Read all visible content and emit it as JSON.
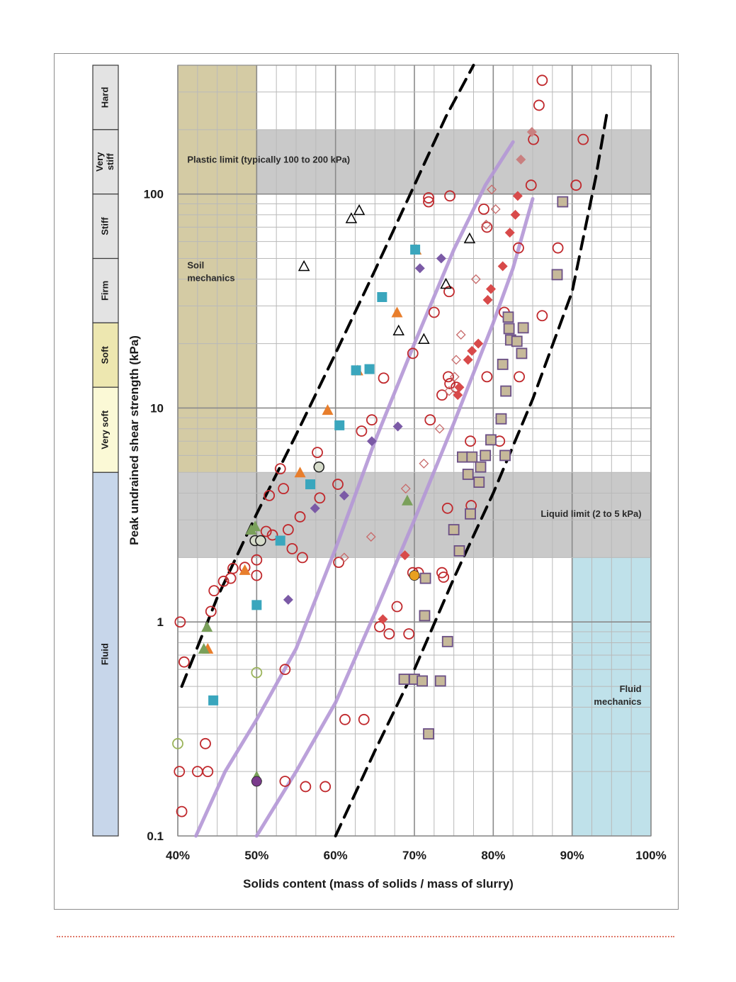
{
  "chart_data": {
    "type": "scatter",
    "xlabel": "Solids content (mass of solids / mass of slurry)",
    "ylabel": "Peak undrained shear strength (kPa)",
    "x_scale": "linear",
    "y_scale": "log",
    "xlim": [
      40,
      100
    ],
    "ylim": [
      0.1,
      400
    ],
    "x_ticks": [
      {
        "value": 40,
        "label": "40%"
      },
      {
        "value": 50,
        "label": "50%"
      },
      {
        "value": 60,
        "label": "60%"
      },
      {
        "value": 70,
        "label": "70%"
      },
      {
        "value": 80,
        "label": "80%"
      },
      {
        "value": 90,
        "label": "90%"
      },
      {
        "value": 100,
        "label": "100%"
      }
    ],
    "y_ticks": [
      {
        "value": 0.1,
        "label": "0.1"
      },
      {
        "value": 1,
        "label": "1"
      },
      {
        "value": 10,
        "label": "10"
      },
      {
        "value": 100,
        "label": "100"
      }
    ],
    "grid": true,
    "consistency_scale": [
      {
        "label": "Hard",
        "from": 200,
        "to": 400,
        "color": "#e3e3e3"
      },
      {
        "label": "Very stiff",
        "from": 100,
        "to": 200,
        "color": "#e3e3e3"
      },
      {
        "label": "Stiff",
        "from": 50,
        "to": 100,
        "color": "#e3e3e3"
      },
      {
        "label": "Firm",
        "from": 25,
        "to": 50,
        "color": "#e3e3e3"
      },
      {
        "label": "Soft",
        "from": 12.5,
        "to": 25,
        "color": "#ede7b0"
      },
      {
        "label": "Very soft",
        "from": 5,
        "to": 12.5,
        "color": "#fbf9d6"
      },
      {
        "label": "Fluid",
        "from": 0.1,
        "to": 5,
        "color": "#c7d6ea"
      }
    ],
    "regions": [
      {
        "label": "Plastic limit (typically 100 to 200 kPa)",
        "x": [
          40,
          100
        ],
        "y": [
          100,
          200
        ],
        "color": "#c9c9c9"
      },
      {
        "label": "Liquid limit (2 to 5 kPa)",
        "x": [
          40,
          100
        ],
        "y": [
          2,
          5
        ],
        "color": "#c9c9c9"
      },
      {
        "label": "Soil mechanics",
        "x": [
          40,
          50
        ],
        "y": [
          5,
          400
        ],
        "color": "#d4cba4"
      },
      {
        "label": "Fluid mechanics",
        "x": [
          90,
          100
        ],
        "y": [
          0.1,
          2
        ],
        "color": "#bfe1ea"
      }
    ],
    "lines": [
      {
        "style": "dashed",
        "color": "#000000",
        "points": [
          [
            40.5,
            0.5
          ],
          [
            45,
            1.3
          ],
          [
            50,
            3.2
          ],
          [
            55,
            7.5
          ],
          [
            60,
            18
          ],
          [
            65,
            44
          ],
          [
            70,
            110
          ],
          [
            74,
            230
          ],
          [
            77.5,
            400
          ]
        ]
      },
      {
        "style": "dashed",
        "color": "#000000",
        "points": [
          [
            60,
            0.1
          ],
          [
            65,
            0.25
          ],
          [
            70,
            0.6
          ],
          [
            75,
            1.6
          ],
          [
            80,
            4
          ],
          [
            85,
            11
          ],
          [
            90,
            35
          ],
          [
            93,
            120
          ],
          [
            94.5,
            250
          ]
        ]
      },
      {
        "style": "solid",
        "color": "#b497d6",
        "points": [
          [
            42.3,
            0.1
          ],
          [
            46,
            0.2
          ],
          [
            50,
            0.35
          ],
          [
            55,
            0.75
          ],
          [
            60,
            2.2
          ],
          [
            65,
            7
          ],
          [
            70,
            20
          ],
          [
            75,
            55
          ],
          [
            79,
            110
          ],
          [
            82.5,
            175
          ]
        ]
      },
      {
        "style": "solid",
        "color": "#b497d6",
        "points": [
          [
            50,
            0.1
          ],
          [
            55,
            0.2
          ],
          [
            60,
            0.42
          ],
          [
            65,
            1.1
          ],
          [
            70,
            3
          ],
          [
            75,
            8.5
          ],
          [
            80,
            25
          ],
          [
            82.5,
            45
          ],
          [
            85,
            95
          ]
        ]
      }
    ],
    "series": [
      {
        "marker": "circle-open",
        "color": "#c0282c",
        "points": [
          [
            40.3,
            1.0
          ],
          [
            40.8,
            0.65
          ],
          [
            40.2,
            0.2
          ],
          [
            40.5,
            0.13
          ],
          [
            42.5,
            0.2
          ],
          [
            43.8,
            0.2
          ],
          [
            43.5,
            0.27
          ],
          [
            44.2,
            1.12
          ],
          [
            44.6,
            1.4
          ],
          [
            45.8,
            1.55
          ],
          [
            46.7,
            1.6
          ],
          [
            47,
            1.78
          ],
          [
            48.5,
            1.8
          ],
          [
            50,
            1.95
          ],
          [
            50,
            1.65
          ],
          [
            51.2,
            2.65
          ],
          [
            51.6,
            3.9
          ],
          [
            52,
            2.55
          ],
          [
            53,
            5.2
          ],
          [
            53.4,
            4.2
          ],
          [
            54,
            2.7
          ],
          [
            54.5,
            2.2
          ],
          [
            55.5,
            3.1
          ],
          [
            55.8,
            2
          ],
          [
            57.7,
            6.2
          ],
          [
            58,
            3.8
          ],
          [
            60.3,
            4.4
          ],
          [
            60.4,
            1.9
          ],
          [
            63.3,
            7.8
          ],
          [
            64.6,
            8.8
          ],
          [
            66.1,
            13.8
          ],
          [
            53.6,
            0.6
          ],
          [
            53.6,
            0.18
          ],
          [
            56.2,
            0.17
          ],
          [
            58.7,
            0.17
          ],
          [
            61.2,
            0.35
          ],
          [
            63.6,
            0.35
          ],
          [
            65.6,
            0.95
          ],
          [
            66.8,
            0.88
          ],
          [
            67.8,
            1.18
          ],
          [
            69.3,
            0.88
          ],
          [
            69.8,
            1.7
          ],
          [
            70.5,
            1.7
          ],
          [
            69.8,
            18
          ],
          [
            71.8,
            96
          ],
          [
            71.8,
            92
          ],
          [
            74.5,
            98
          ],
          [
            72.5,
            28
          ],
          [
            72,
            8.8
          ],
          [
            73.5,
            11.5
          ],
          [
            74.3,
            14
          ],
          [
            74.5,
            13
          ],
          [
            74.4,
            35
          ],
          [
            74.2,
            3.4
          ],
          [
            73.5,
            1.7
          ],
          [
            73.7,
            1.62
          ],
          [
            75.3,
            12.5
          ],
          [
            77.1,
            7
          ],
          [
            79.2,
            14
          ],
          [
            79.2,
            70
          ],
          [
            80.8,
            7
          ],
          [
            78.8,
            85
          ],
          [
            81.4,
            28
          ],
          [
            83.2,
            56
          ],
          [
            83.3,
            14
          ],
          [
            86.2,
            27
          ],
          [
            86.2,
            340
          ],
          [
            85.8,
            260
          ],
          [
            85.1,
            180
          ],
          [
            84.8,
            110
          ],
          [
            88.2,
            56
          ],
          [
            90.5,
            110
          ],
          [
            91.4,
            180
          ],
          [
            77.2,
            3.5
          ]
        ]
      },
      {
        "marker": "circle-open",
        "color": "#9bb45a",
        "points": [
          [
            40,
            0.27
          ],
          [
            50,
            0.58
          ]
        ]
      },
      {
        "marker": "circle-open-filled",
        "color": "#7aa05a",
        "points": [
          [
            49.8,
            2.4
          ],
          [
            50.5,
            2.4
          ],
          [
            57.9,
            5.3
          ]
        ]
      },
      {
        "marker": "triangle-open",
        "color": "#000000",
        "points": [
          [
            56,
            46
          ],
          [
            62,
            77
          ],
          [
            63,
            84
          ],
          [
            68,
            23
          ],
          [
            71.2,
            21
          ],
          [
            74,
            38
          ],
          [
            77,
            62
          ]
        ]
      },
      {
        "marker": "triangle",
        "color": "#e87e2c",
        "points": [
          [
            43.8,
            0.75
          ],
          [
            48.5,
            1.75
          ],
          [
            55.5,
            5
          ],
          [
            59,
            9.8
          ],
          [
            62.8,
            15
          ],
          [
            67.8,
            28
          ],
          [
            70.2,
            55
          ]
        ]
      },
      {
        "marker": "triangle",
        "color": "#7aa05a",
        "points": [
          [
            43.3,
            0.75
          ],
          [
            43.7,
            0.95
          ],
          [
            49.3,
            2.7
          ],
          [
            49.8,
            2.8
          ],
          [
            50,
            0.19
          ],
          [
            69.1,
            3.7
          ]
        ]
      },
      {
        "marker": "square",
        "color": "#3aa6bd",
        "points": [
          [
            44.5,
            0.43
          ],
          [
            50,
            1.2
          ],
          [
            53,
            2.4
          ],
          [
            56.8,
            4.4
          ],
          [
            60.5,
            8.3
          ],
          [
            64.3,
            15.2
          ],
          [
            65.9,
            33
          ],
          [
            70.1,
            55
          ],
          [
            62.6,
            15
          ]
        ]
      },
      {
        "marker": "diamond",
        "color": "#7b5aa6",
        "points": [
          [
            50,
            0.18
          ],
          [
            54,
            1.27
          ],
          [
            57.4,
            3.4
          ],
          [
            61.1,
            3.9
          ],
          [
            64.6,
            7
          ],
          [
            67.9,
            8.2
          ],
          [
            70.7,
            45
          ],
          [
            73.4,
            50
          ]
        ]
      },
      {
        "marker": "diamond",
        "color": "#d84a4a",
        "points": [
          [
            66,
            1.03
          ],
          [
            68.8,
            2.05
          ],
          [
            75.5,
            11.5
          ],
          [
            75.7,
            12.5
          ],
          [
            76.8,
            16.8
          ],
          [
            77.3,
            18.5
          ],
          [
            78.1,
            20
          ],
          [
            79.3,
            32
          ],
          [
            79.7,
            36
          ],
          [
            81.2,
            46
          ],
          [
            82.1,
            66
          ],
          [
            82.8,
            80
          ],
          [
            83.1,
            98
          ]
        ]
      },
      {
        "marker": "diamond-open",
        "color": "#c86a6a",
        "points": [
          [
            61.1,
            2
          ],
          [
            64.5,
            2.5
          ],
          [
            68.9,
            4.2
          ],
          [
            71.2,
            5.5
          ],
          [
            73.2,
            8
          ],
          [
            74.4,
            12
          ],
          [
            75.1,
            14
          ],
          [
            75.3,
            16.8
          ],
          [
            75.9,
            22
          ],
          [
            77.8,
            40
          ],
          [
            79.1,
            72
          ],
          [
            79.8,
            105
          ],
          [
            80.3,
            85
          ]
        ]
      },
      {
        "marker": "diamond",
        "color": "#c98080",
        "points": [
          [
            83.5,
            145
          ],
          [
            84.9,
            195
          ]
        ]
      },
      {
        "marker": "square-outlined",
        "color": "#c6b99a",
        "points": [
          [
            68.7,
            0.54
          ],
          [
            70,
            0.54
          ],
          [
            71,
            0.53
          ],
          [
            73.3,
            0.53
          ],
          [
            71.3,
            1.07
          ],
          [
            71.4,
            1.6
          ],
          [
            74.2,
            0.81
          ],
          [
            71.8,
            0.3
          ],
          [
            75,
            2.7
          ],
          [
            75.7,
            2.15
          ],
          [
            76.1,
            5.9
          ],
          [
            76.8,
            4.9
          ],
          [
            77.1,
            3.2
          ],
          [
            77.3,
            5.9
          ],
          [
            78.2,
            4.5
          ],
          [
            78.4,
            5.3
          ],
          [
            79,
            6
          ],
          [
            79.7,
            7.1
          ],
          [
            81,
            8.9
          ],
          [
            81.2,
            16
          ],
          [
            81.5,
            6
          ],
          [
            81.6,
            12
          ],
          [
            81.9,
            26.6
          ],
          [
            82,
            23.5
          ],
          [
            82.2,
            20.8
          ],
          [
            83,
            20.5
          ],
          [
            83.6,
            18
          ],
          [
            83.8,
            23.7
          ],
          [
            88.1,
            42
          ],
          [
            88.8,
            92
          ]
        ]
      },
      {
        "marker": "circle",
        "color": "#7b3b8c",
        "points": [
          [
            50,
            0.18
          ]
        ]
      },
      {
        "marker": "circle",
        "color": "#e8a020",
        "points": [
          [
            70,
            1.65
          ]
        ]
      }
    ]
  }
}
